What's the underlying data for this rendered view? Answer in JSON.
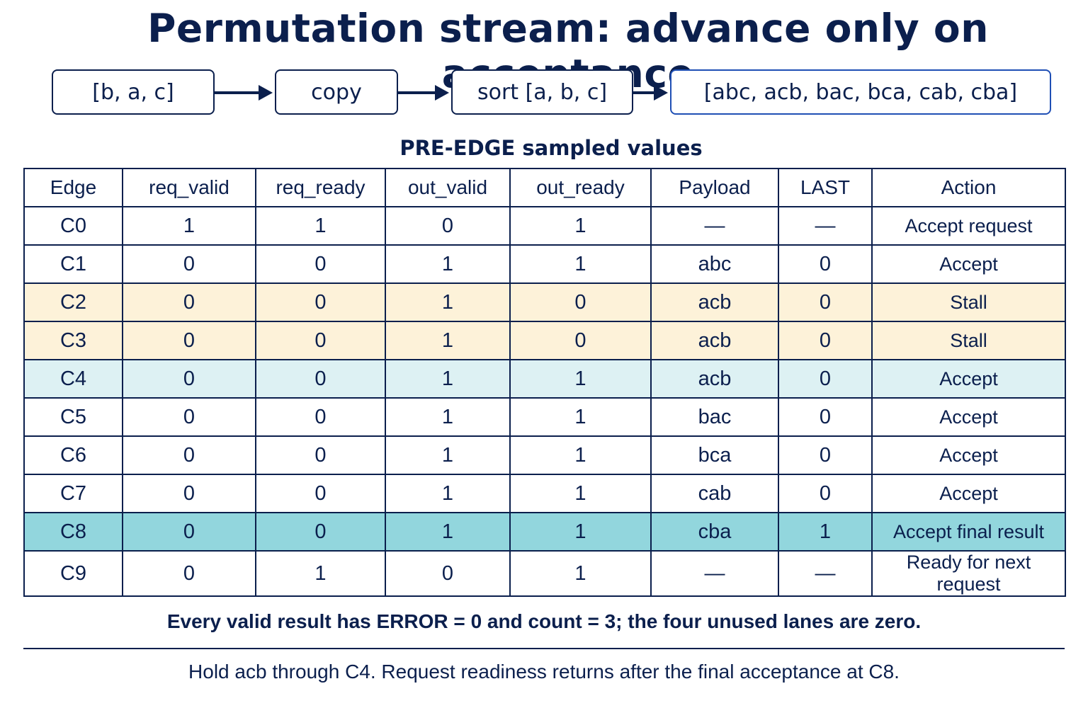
{
  "title": "Permutation stream: advance only on acceptance",
  "flow": {
    "input": "[b, a, c]",
    "copy": "copy",
    "sort": "sort [a, b, c]",
    "output": "[abc, acb, bac, bca, cab, cba]"
  },
  "subtitle": "PRE-EDGE sampled values",
  "table": {
    "headers": [
      "Edge",
      "req_valid",
      "req_ready",
      "out_valid",
      "out_ready",
      "Payload",
      "LAST",
      "Action"
    ],
    "rows": [
      [
        "C0",
        "1",
        "1",
        "0",
        "1",
        "—",
        "—",
        "Accept request"
      ],
      [
        "C1",
        "0",
        "0",
        "1",
        "1",
        "abc",
        "0",
        "Accept"
      ],
      [
        "C2",
        "0",
        "0",
        "1",
        "0",
        "acb",
        "0",
        "Stall"
      ],
      [
        "C3",
        "0",
        "0",
        "1",
        "0",
        "acb",
        "0",
        "Stall"
      ],
      [
        "C4",
        "0",
        "0",
        "1",
        "1",
        "acb",
        "0",
        "Accept"
      ],
      [
        "C5",
        "0",
        "0",
        "1",
        "1",
        "bac",
        "0",
        "Accept"
      ],
      [
        "C6",
        "0",
        "0",
        "1",
        "1",
        "bca",
        "0",
        "Accept"
      ],
      [
        "C7",
        "0",
        "0",
        "1",
        "1",
        "cab",
        "0",
        "Accept"
      ],
      [
        "C8",
        "0",
        "0",
        "1",
        "1",
        "cba",
        "1",
        "Accept final result"
      ],
      [
        "C9",
        "0",
        "1",
        "0",
        "1",
        "—",
        "—",
        "Ready for next request"
      ]
    ]
  },
  "colors": {
    "ink": "#0b1f4d",
    "stall_row": "#fdf2d9",
    "hold_accept_row": "#ddf1f3",
    "final_row": "#92d6dd"
  },
  "note": "Every valid result has ERROR = 0 and count = 3; the four unused lanes are zero.",
  "footer": "Hold acb through C4. Request readiness returns after the final acceptance at C8."
}
